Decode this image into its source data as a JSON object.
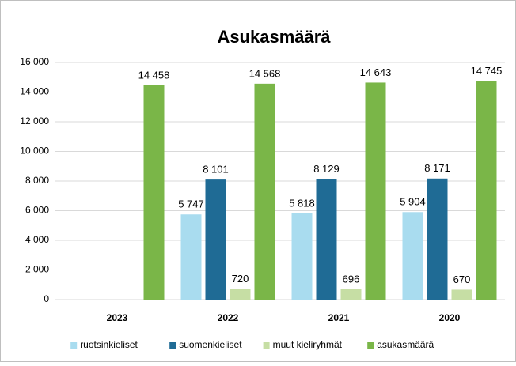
{
  "chart_data": {
    "type": "bar",
    "title": "Asukasmäärä",
    "categories": [
      "2023",
      "2022",
      "2021",
      "2020"
    ],
    "series": [
      {
        "name": "ruotsinkieliset",
        "color": "#a9dcef",
        "values": [
          null,
          5747,
          5818,
          5904
        ],
        "value_labels": [
          null,
          "5 747",
          "5 818",
          "5 904"
        ]
      },
      {
        "name": "suomenkieliset",
        "color": "#1f6b95",
        "values": [
          null,
          8101,
          8129,
          8171
        ],
        "value_labels": [
          null,
          "8 101",
          "8 129",
          "8 171"
        ]
      },
      {
        "name": "muut kieliryhmät",
        "color": "#c6dea4",
        "values": [
          null,
          720,
          696,
          670
        ],
        "value_labels": [
          null,
          "720",
          "696",
          "670"
        ]
      },
      {
        "name": "asukasmäärä",
        "color": "#7ab648",
        "values": [
          14458,
          14568,
          14643,
          14745
        ],
        "value_labels": [
          "14 458",
          "14 568",
          "14 643",
          "14 745"
        ]
      }
    ],
    "ylim": [
      0,
      16000
    ],
    "yticks": [
      0,
      {
        "value": 2000,
        "label": "2 000"
      },
      {
        "value": 4000,
        "label": "4 000"
      },
      {
        "value": 6000,
        "label": "6 000"
      },
      {
        "value": 8000,
        "label": "8 000"
      },
      {
        "value": 10000,
        "label": "10 000"
      },
      {
        "value": 12000,
        "label": "12 000"
      },
      {
        "value": 14000,
        "label": "14 000"
      },
      {
        "value": 16000,
        "label": "16 000"
      }
    ],
    "grid": true,
    "legend": "bottom"
  }
}
